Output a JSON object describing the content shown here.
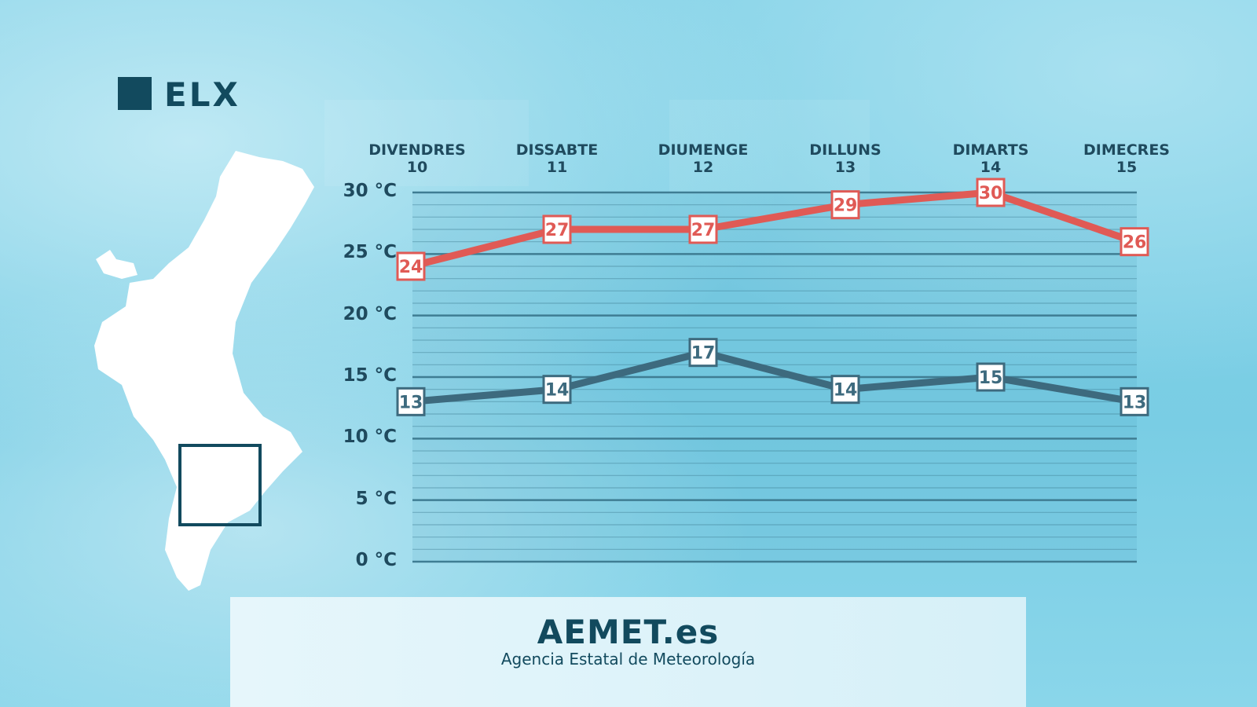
{
  "title": "ELX",
  "colors": {
    "max": "#e05a55",
    "min": "#3d6a7e",
    "text": "#1f4a5e",
    "brand": "#124a5e"
  },
  "chart_data": {
    "type": "line",
    "categories": [
      {
        "day": "DIVENDRES",
        "date": "10"
      },
      {
        "day": "DISSABTE",
        "date": "11"
      },
      {
        "day": "DIUMENGE",
        "date": "12"
      },
      {
        "day": "DILLUNS",
        "date": "13"
      },
      {
        "day": "DIMARTS",
        "date": "14"
      },
      {
        "day": "DIMECRES",
        "date": "15"
      }
    ],
    "series": [
      {
        "values": [
          24,
          27,
          27,
          29,
          30,
          26
        ],
        "color": "#e05a55"
      },
      {
        "values": [
          13,
          14,
          17,
          14,
          15,
          13
        ],
        "color": "#3d6a7e"
      }
    ],
    "yticks": [
      "0 °C",
      "5 °C",
      "10 °C",
      "15 °C",
      "20 °C",
      "25 °C",
      "30 °C"
    ],
    "ylim": [
      0,
      30
    ],
    "grid": true
  },
  "footer": {
    "brand": "AEMET.es",
    "subtitle": "Agencia Estatal de Meteorología"
  }
}
